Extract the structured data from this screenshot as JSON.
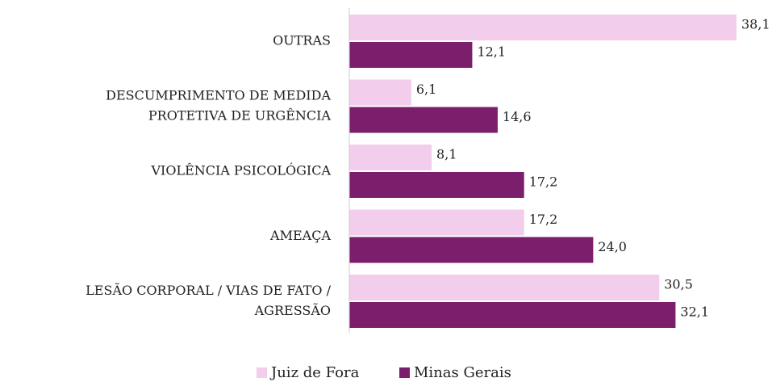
{
  "chart_data": {
    "type": "barh",
    "categories": [
      [
        "OUTRAS"
      ],
      [
        "DESCUMPRIMENTO DE MEDIDA",
        "PROTETIVA DE URGÊNCIA"
      ],
      [
        "VIOLÊNCIA PSICOLÓGICA"
      ],
      [
        "AMEAÇA"
      ],
      [
        "LESÃO CORPORAL / VIAS DE FATO /",
        "AGRESSÃO"
      ]
    ],
    "series": [
      {
        "name": "Juiz de Fora",
        "color": "#f2cdec",
        "values": [
          38.1,
          6.1,
          8.1,
          17.2,
          30.5
        ],
        "value_labels": [
          "38,1",
          "6,1",
          "8,1",
          "17,2",
          "30,5"
        ]
      },
      {
        "name": "Minas Gerais",
        "color": "#7b1f6d",
        "values": [
          12.1,
          14.6,
          17.2,
          24.0,
          32.1
        ],
        "value_labels": [
          "12,1",
          "14,6",
          "17,2",
          "24,0",
          "32,1"
        ]
      }
    ],
    "xlim": [
      0,
      40
    ],
    "legend": "bottom"
  }
}
